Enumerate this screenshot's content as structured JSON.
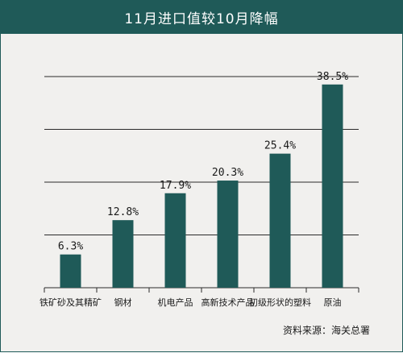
{
  "chart_data": {
    "type": "bar",
    "title": "11月进口值较10月降幅",
    "categories": [
      "铁矿砂及其精矿",
      "钢材",
      "机电产品",
      "高新技术产品",
      "初级形状的塑料",
      "原油"
    ],
    "values": [
      6.3,
      12.8,
      17.9,
      20.3,
      25.4,
      38.5
    ],
    "value_labels": [
      "6.3%",
      "12.8%",
      "17.9%",
      "20.3%",
      "25.4%",
      "38.5%"
    ],
    "ylim": [
      0,
      40
    ],
    "grid": true,
    "bar_color": "#1f5a58",
    "xlabel": "",
    "ylabel": ""
  },
  "source": "资料来源：海关总署"
}
